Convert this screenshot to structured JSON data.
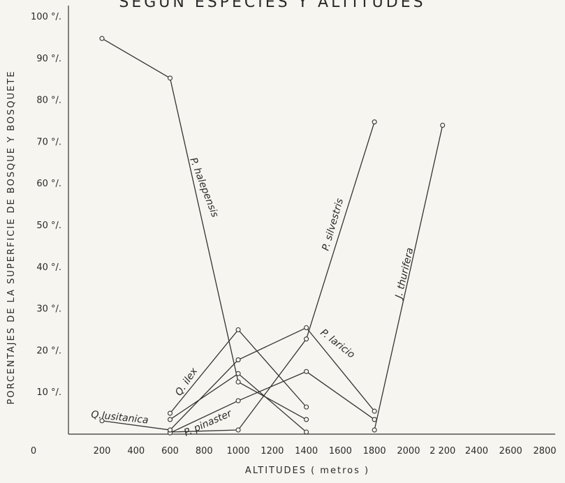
{
  "chart_data": {
    "type": "line",
    "title": "SEGUN ESPECIES Y ALTITUDES",
    "xlabel": "ALTITUDES  ( metros )",
    "ylabel": "PORCENTAJES DE LA SUPERFICIE DE BOSQUE Y BOSQUETE",
    "xlim": [
      0,
      2800
    ],
    "ylim": [
      0,
      100
    ],
    "grid": false,
    "x_ticks": [
      {
        "value": 200,
        "label": "200"
      },
      {
        "value": 400,
        "label": "400"
      },
      {
        "value": 600,
        "label": "600"
      },
      {
        "value": 800,
        "label": "800"
      },
      {
        "value": 1000,
        "label": "1000"
      },
      {
        "value": 1200,
        "label": "1200"
      },
      {
        "value": 1400,
        "label": "1400"
      },
      {
        "value": 1600,
        "label": "1600"
      },
      {
        "value": 1800,
        "label": "1800"
      },
      {
        "value": 2000,
        "label": "2000"
      },
      {
        "value": 2200,
        "label": "2 200"
      },
      {
        "value": 2400,
        "label": "2400"
      },
      {
        "value": 2600,
        "label": "2600"
      },
      {
        "value": 2800,
        "label": "2800"
      }
    ],
    "x_origin_label": "0",
    "y_ticks": [
      {
        "value": 10,
        "label": "10 °/."
      },
      {
        "value": 20,
        "label": "20 °/."
      },
      {
        "value": 30,
        "label": "30 °/."
      },
      {
        "value": 40,
        "label": "40 °/."
      },
      {
        "value": 50,
        "label": "50 °/."
      },
      {
        "value": 60,
        "label": "60 °/."
      },
      {
        "value": 70,
        "label": "70 °/."
      },
      {
        "value": 80,
        "label": "80 °/."
      },
      {
        "value": 90,
        "label": "90 °/."
      },
      {
        "value": 100,
        "label": "100 °/."
      }
    ],
    "series": [
      {
        "name": "P. halepensis",
        "x": [
          200,
          600,
          1000,
          1400
        ],
        "y": [
          94.8,
          85.3,
          12.5,
          3.5
        ]
      },
      {
        "name": "P. silvestris",
        "x": [
          600,
          1000,
          1400,
          1800
        ],
        "y": [
          0.5,
          1.0,
          22.8,
          74.8
        ]
      },
      {
        "name": "J. thurifera",
        "x": [
          1800,
          2200
        ],
        "y": [
          1.0,
          74.0
        ]
      },
      {
        "name": "P. laricio",
        "x": [
          600,
          1000,
          1400,
          1800
        ],
        "y": [
          0.3,
          8.0,
          15.0,
          3.5
        ]
      },
      {
        "name": "Q. ilex",
        "x": [
          600,
          1000,
          1400
        ],
        "y": [
          5.0,
          25.0,
          6.5
        ]
      },
      {
        "name": "P. pinaster",
        "x": [
          600,
          1000,
          1400
        ],
        "y": [
          3.5,
          14.5,
          0.5
        ]
      },
      {
        "name": "Q.lusitanica",
        "x": [
          200,
          600,
          1000,
          1400,
          1800
        ],
        "y": [
          3.2,
          1.0,
          17.8,
          25.5,
          5.5
        ]
      }
    ]
  }
}
